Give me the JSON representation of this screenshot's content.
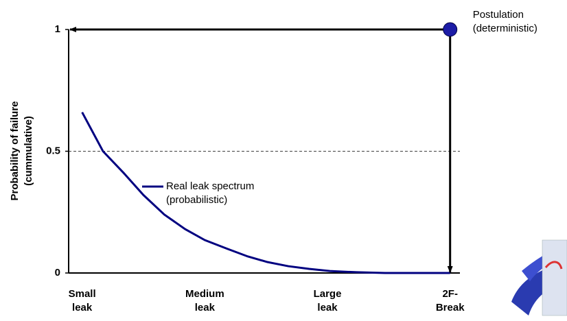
{
  "chart_data": {
    "type": "line",
    "ylabel": "Probability of failure (cummulative)",
    "xlim": [
      -0.11,
      3.08
    ],
    "xticks": [
      {
        "value": 0,
        "label": "Small leak"
      },
      {
        "value": 1,
        "label": "Medium leak"
      },
      {
        "value": 2,
        "label": "Large leak"
      },
      {
        "value": 3,
        "label": "2F-Break"
      }
    ],
    "ylim": [
      0,
      1
    ],
    "yticks": [
      0,
      0.5,
      1
    ],
    "grid": "dashed",
    "series": [
      {
        "name": "Real leak spectrum (probabilistic)",
        "color": "#000080",
        "kind": "line",
        "x": [
          0,
          0.17,
          0.34,
          0.5,
          0.67,
          0.84,
          1.0,
          1.18,
          1.35,
          1.51,
          1.68,
          1.85,
          2.02,
          2.24,
          2.47,
          3
        ],
        "values": [
          0.66,
          0.5,
          0.41,
          0.32,
          0.24,
          0.18,
          0.135,
          0.1,
          0.068,
          0.045,
          0.028,
          0.017,
          0.008,
          0.003,
          0,
          0
        ]
      },
      {
        "name": "Postulation (deterministic)",
        "color": "#1c1ca6",
        "kind": "point",
        "x": [
          3
        ],
        "values": [
          1
        ]
      }
    ]
  }
}
